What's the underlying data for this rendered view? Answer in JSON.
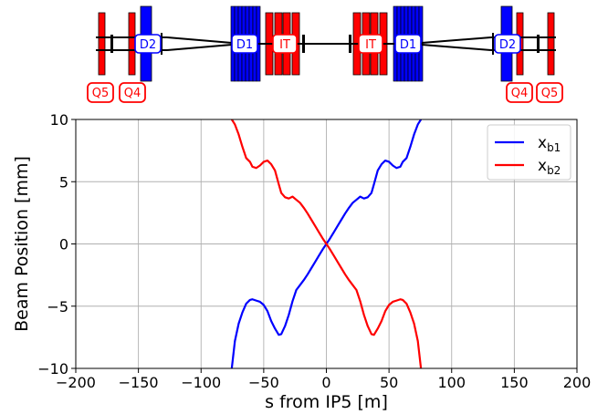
{
  "colors": {
    "beam1": "#0000ff",
    "beam2": "#ff0000",
    "grid": "#b0b0b0",
    "axis": "#000000"
  },
  "magnet_labels": {
    "q5_left": "Q5",
    "q4_left": "Q4",
    "d2_left": "D2",
    "d1_left": "D1",
    "it_left": "IT",
    "it_right": "IT",
    "d1_right": "D1",
    "d2_right": "D2",
    "q4_right": "Q4",
    "q5_right": "Q5"
  },
  "chart_data": {
    "type": "line",
    "title": "",
    "xlabel": "s from IP5 [m]",
    "ylabel": "Beam Position [mm]",
    "xlim": [
      -200,
      200
    ],
    "ylim": [
      -10,
      10
    ],
    "xticks": [
      -200,
      -150,
      -100,
      -50,
      0,
      50,
      100,
      150,
      200
    ],
    "yticks": [
      -10,
      -5,
      0,
      5,
      10
    ],
    "xtick_labels": [
      "−200",
      "−150",
      "−100",
      "−50",
      "0",
      "50",
      "100",
      "150",
      "200"
    ],
    "ytick_labels": [
      "−10",
      "−5",
      "0",
      "5",
      "10"
    ],
    "grid": true,
    "legend_position": "top-right",
    "series": [
      {
        "name": "x_b1",
        "legend_main": "x",
        "legend_sub": "b1",
        "color": "#0000ff",
        "x": [
          -75.5,
          -73,
          -70,
          -67,
          -64,
          -61,
          -59,
          -56,
          -53,
          -50,
          -47,
          -44,
          -41,
          -38,
          -36,
          -33,
          -30,
          -27,
          -24,
          -21,
          -18,
          -15,
          -12,
          -9,
          -6,
          -3,
          0,
          3,
          6,
          9,
          12,
          15,
          18,
          21,
          24,
          27,
          30,
          33,
          36,
          38,
          41,
          44,
          47,
          50,
          53,
          56,
          59,
          61,
          64,
          67,
          70,
          73,
          75.5
        ],
        "y": [
          -10,
          -7.8,
          -6.4,
          -5.5,
          -4.8,
          -4.5,
          -4.45,
          -4.55,
          -4.65,
          -4.9,
          -5.4,
          -6.2,
          -6.8,
          -7.3,
          -7.25,
          -6.6,
          -5.7,
          -4.6,
          -3.7,
          -3.3,
          -2.9,
          -2.45,
          -1.95,
          -1.45,
          -0.95,
          -0.45,
          0,
          0.45,
          0.95,
          1.45,
          1.95,
          2.45,
          2.9,
          3.3,
          3.55,
          3.8,
          3.65,
          3.75,
          4.1,
          4.8,
          5.9,
          6.4,
          6.7,
          6.6,
          6.3,
          6.1,
          6.2,
          6.6,
          6.9,
          7.8,
          8.8,
          9.6,
          10
        ]
      },
      {
        "name": "x_b2",
        "legend_main": "x",
        "legend_sub": "b2",
        "color": "#ff0000",
        "x": [
          -75.5,
          -73,
          -70,
          -67,
          -64,
          -61,
          -59,
          -56,
          -53,
          -50,
          -47,
          -44,
          -41,
          -38,
          -36,
          -33,
          -30,
          -27,
          -24,
          -21,
          -18,
          -15,
          -12,
          -9,
          -6,
          -3,
          0,
          3,
          6,
          9,
          12,
          15,
          18,
          21,
          24,
          27,
          30,
          33,
          36,
          38,
          41,
          44,
          47,
          50,
          53,
          56,
          59,
          61,
          64,
          67,
          70,
          73,
          75.5
        ],
        "y": [
          10,
          9.6,
          8.8,
          7.8,
          6.9,
          6.6,
          6.2,
          6.1,
          6.3,
          6.6,
          6.7,
          6.4,
          5.9,
          4.8,
          4.1,
          3.75,
          3.65,
          3.8,
          3.55,
          3.3,
          2.9,
          2.45,
          1.95,
          1.45,
          0.95,
          0.45,
          0,
          -0.45,
          -0.95,
          -1.45,
          -1.95,
          -2.45,
          -2.9,
          -3.3,
          -3.7,
          -4.6,
          -5.7,
          -6.6,
          -7.25,
          -7.3,
          -6.8,
          -6.2,
          -5.4,
          -4.9,
          -4.65,
          -4.55,
          -4.45,
          -4.5,
          -4.8,
          -5.5,
          -6.4,
          -7.8,
          -10
        ]
      }
    ]
  }
}
